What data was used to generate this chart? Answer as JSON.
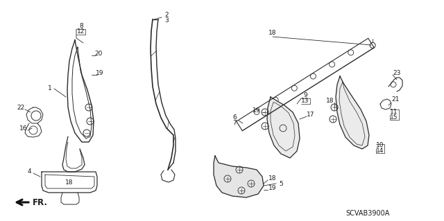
{
  "bg_color": "#ffffff",
  "line_color": "#2a2a2a",
  "text_color": "#1a1a1a",
  "diagram_code": "SCVAB3900A",
  "fs": 6.5,
  "fs_small": 5.8
}
